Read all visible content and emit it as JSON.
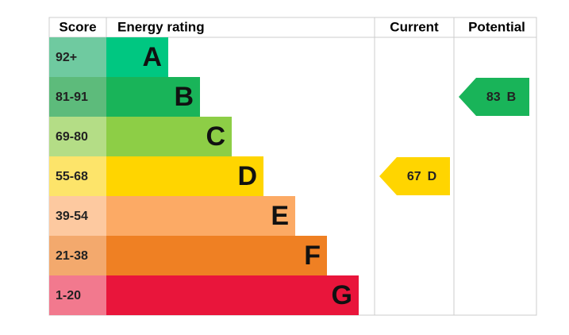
{
  "header": {
    "score": "Score",
    "rating": "Energy rating",
    "current": "Current",
    "potential": "Potential"
  },
  "bands": [
    {
      "score": "92+",
      "letter": "A",
      "color": "#00c781",
      "score_color": "#6fcaa0"
    },
    {
      "score": "81-91",
      "letter": "B",
      "color": "#19b459",
      "score_color": "#5dbb7b"
    },
    {
      "score": "69-80",
      "letter": "C",
      "color": "#8dce46",
      "score_color": "#b4dd86"
    },
    {
      "score": "55-68",
      "letter": "D",
      "color": "#ffd500",
      "score_color": "#fde46a"
    },
    {
      "score": "39-54",
      "letter": "E",
      "color": "#fcaa65",
      "score_color": "#fdc9a0"
    },
    {
      "score": "21-38",
      "letter": "F",
      "color": "#ef8023",
      "score_color": "#f3a96d"
    },
    {
      "score": "1-20",
      "letter": "G",
      "color": "#e9153b",
      "score_color": "#f2798e"
    }
  ],
  "current": {
    "value": 67,
    "letter": "D"
  },
  "potential": {
    "value": 83,
    "letter": "B"
  }
}
